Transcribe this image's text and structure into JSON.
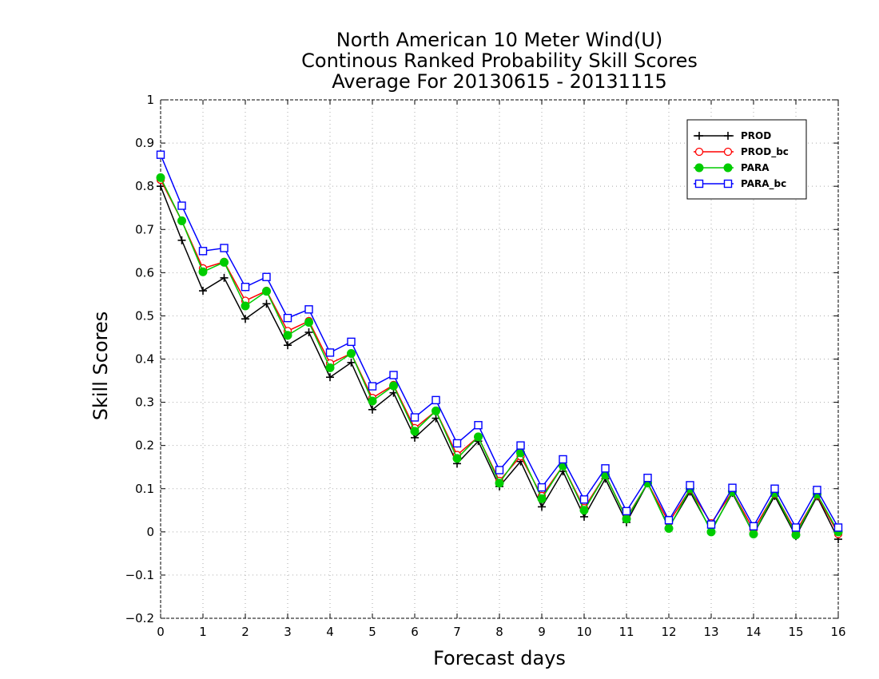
{
  "chart_data": {
    "type": "line",
    "title": [
      "North American 10 Meter Wind(U)",
      "Continous Ranked Probability Skill Scores",
      "Average For 20130615 - 20131115"
    ],
    "xlabel": "Forecast days",
    "ylabel": "Skill Scores",
    "xlim": [
      0,
      16
    ],
    "ylim": [
      -0.2,
      1
    ],
    "x_ticks": [
      "0",
      "1",
      "2",
      "3",
      "4",
      "5",
      "6",
      "7",
      "8",
      "9",
      "10",
      "11",
      "12",
      "13",
      "14",
      "15",
      "16"
    ],
    "y_ticks": [
      "−0.2",
      "−0.1",
      "0",
      "0.1",
      "0.2",
      "0.3",
      "0.4",
      "0.5",
      "0.6",
      "0.7",
      "0.8",
      "0.9",
      "1"
    ],
    "grid": true,
    "legend_position": "top-right",
    "x": [
      0,
      0.5,
      1,
      1.5,
      2,
      2.5,
      3,
      3.5,
      4,
      4.5,
      5,
      5.5,
      6,
      6.5,
      7,
      7.5,
      8,
      8.5,
      9,
      9.5,
      10,
      10.5,
      11,
      11.5,
      12,
      12.5,
      13,
      13.5,
      14,
      14.5,
      15,
      15.5,
      16
    ],
    "series": [
      {
        "name": "PROD",
        "color": "#000000",
        "marker": "plus",
        "values": [
          0.8,
          0.675,
          0.558,
          0.588,
          0.493,
          0.528,
          0.432,
          0.462,
          0.358,
          0.392,
          0.283,
          0.322,
          0.218,
          0.263,
          0.158,
          0.21,
          0.105,
          0.163,
          0.058,
          0.14,
          0.035,
          0.123,
          0.022,
          0.113,
          0.01,
          0.093,
          0.003,
          0.09,
          -0.005,
          0.083,
          -0.01,
          0.082,
          -0.017
        ]
      },
      {
        "name": "PROD_bc",
        "color": "#ff0000",
        "marker": "open-circle",
        "values": [
          0.815,
          0.72,
          0.61,
          0.625,
          0.535,
          0.558,
          0.465,
          0.488,
          0.39,
          0.413,
          0.31,
          0.34,
          0.24,
          0.28,
          0.178,
          0.22,
          0.118,
          0.175,
          0.083,
          0.153,
          0.055,
          0.132,
          0.032,
          0.113,
          0.022,
          0.098,
          0.02,
          0.093,
          0.005,
          0.088,
          0.0,
          0.085,
          -0.005
        ]
      },
      {
        "name": "PARA",
        "color": "#00cc00",
        "marker": "filled-circle",
        "values": [
          0.82,
          0.72,
          0.602,
          0.624,
          0.523,
          0.557,
          0.455,
          0.485,
          0.38,
          0.413,
          0.303,
          0.338,
          0.233,
          0.28,
          0.17,
          0.22,
          0.113,
          0.183,
          0.077,
          0.153,
          0.05,
          0.132,
          0.03,
          0.113,
          0.008,
          0.1,
          0.0,
          0.093,
          -0.005,
          0.09,
          -0.007,
          0.087,
          0.0
        ]
      },
      {
        "name": "PARA_bc",
        "color": "#0000ff",
        "marker": "open-square",
        "values": [
          0.873,
          0.755,
          0.65,
          0.657,
          0.567,
          0.59,
          0.495,
          0.515,
          0.415,
          0.44,
          0.337,
          0.363,
          0.265,
          0.305,
          0.205,
          0.247,
          0.143,
          0.2,
          0.103,
          0.168,
          0.075,
          0.147,
          0.048,
          0.125,
          0.027,
          0.108,
          0.017,
          0.102,
          0.013,
          0.1,
          0.01,
          0.097,
          0.01
        ]
      }
    ]
  }
}
